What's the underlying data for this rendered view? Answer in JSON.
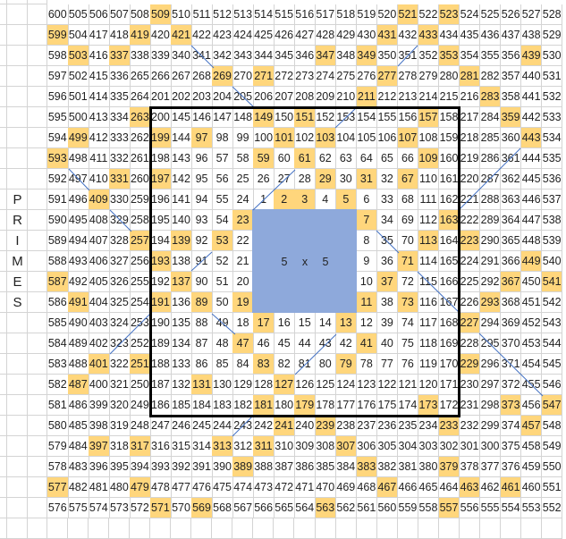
{
  "side_label": [
    "P",
    "R",
    "I",
    "M",
    "E",
    "S"
  ],
  "block_label": [
    "5",
    "x",
    "5"
  ],
  "colors": {
    "highlight": "#FFD67C",
    "block": "#8EA9DB",
    "frame": "#000000",
    "diagonal_lines": "#4472C4"
  },
  "highlighted": [
    2,
    3,
    5,
    7,
    11,
    13,
    17,
    19,
    23,
    29,
    31,
    37,
    41,
    47,
    53,
    59,
    61,
    67,
    71,
    73,
    79,
    83,
    89,
    97,
    101,
    103,
    107,
    109,
    113,
    127,
    131,
    137,
    139,
    149,
    151,
    157,
    163,
    173,
    179,
    181,
    191,
    193,
    197,
    199,
    211,
    223,
    227,
    229,
    233,
    239,
    241,
    251,
    257,
    263,
    269,
    271,
    277,
    281,
    283,
    293,
    307,
    311,
    313,
    317,
    331,
    337,
    347,
    349,
    353,
    359,
    367,
    373,
    379,
    383,
    389,
    397,
    401,
    409,
    419,
    421,
    431,
    433,
    439,
    443,
    449,
    457,
    461,
    463,
    467,
    479,
    487,
    491,
    499,
    503,
    509,
    521,
    523,
    541,
    547,
    557,
    563,
    569,
    571,
    577,
    587,
    593,
    599
  ],
  "grid": {
    "rows": [
      [
        600,
        505,
        506,
        507,
        508,
        509,
        510,
        511,
        512,
        513,
        514,
        515,
        516,
        517,
        518,
        519,
        520,
        521,
        522,
        523,
        524,
        525,
        526,
        527,
        528
      ],
      [
        599,
        504,
        417,
        418,
        419,
        420,
        421,
        422,
        423,
        424,
        425,
        426,
        427,
        428,
        429,
        430,
        431,
        432,
        433,
        434,
        435,
        436,
        437,
        438,
        529
      ],
      [
        598,
        503,
        416,
        337,
        338,
        339,
        340,
        341,
        342,
        343,
        344,
        345,
        346,
        347,
        348,
        349,
        350,
        351,
        352,
        353,
        354,
        355,
        356,
        439,
        530
      ],
      [
        597,
        502,
        415,
        336,
        265,
        266,
        267,
        268,
        269,
        270,
        271,
        272,
        273,
        274,
        275,
        276,
        277,
        278,
        279,
        280,
        281,
        282,
        357,
        440,
        531
      ],
      [
        596,
        501,
        414,
        335,
        264,
        201,
        202,
        203,
        204,
        205,
        206,
        207,
        208,
        209,
        210,
        211,
        212,
        213,
        214,
        215,
        216,
        283,
        358,
        441,
        532
      ],
      [
        595,
        500,
        413,
        334,
        263,
        200,
        145,
        146,
        147,
        148,
        149,
        150,
        151,
        152,
        153,
        154,
        155,
        156,
        157,
        158,
        217,
        284,
        359,
        442,
        533
      ],
      [
        594,
        499,
        412,
        333,
        262,
        199,
        144,
        97,
        98,
        99,
        100,
        101,
        102,
        103,
        104,
        105,
        106,
        107,
        108,
        159,
        218,
        285,
        360,
        443,
        534
      ],
      [
        593,
        498,
        411,
        332,
        261,
        198,
        143,
        96,
        57,
        58,
        59,
        60,
        61,
        62,
        63,
        64,
        65,
        66,
        109,
        160,
        219,
        286,
        361,
        444,
        535
      ],
      [
        592,
        497,
        410,
        331,
        260,
        197,
        142,
        95,
        56,
        25,
        26,
        27,
        28,
        29,
        30,
        31,
        32,
        67,
        110,
        161,
        220,
        287,
        362,
        445,
        536
      ],
      [
        591,
        496,
        409,
        330,
        259,
        196,
        141,
        94,
        55,
        24,
        1,
        2,
        3,
        4,
        5,
        6,
        33,
        68,
        111,
        162,
        221,
        288,
        363,
        446,
        537
      ],
      [
        590,
        495,
        408,
        329,
        258,
        195,
        140,
        93,
        54,
        23,
        null,
        null,
        null,
        null,
        null,
        7,
        34,
        69,
        112,
        163,
        222,
        289,
        364,
        447,
        538
      ],
      [
        589,
        494,
        407,
        328,
        257,
        194,
        139,
        92,
        53,
        22,
        null,
        null,
        null,
        null,
        null,
        8,
        35,
        70,
        113,
        164,
        223,
        290,
        365,
        448,
        539
      ],
      [
        588,
        493,
        406,
        327,
        256,
        193,
        138,
        91,
        52,
        21,
        null,
        null,
        null,
        null,
        null,
        9,
        36,
        71,
        114,
        165,
        224,
        291,
        366,
        449,
        540
      ],
      [
        587,
        492,
        405,
        326,
        255,
        192,
        137,
        90,
        51,
        20,
        null,
        null,
        null,
        null,
        null,
        10,
        37,
        72,
        115,
        166,
        225,
        292,
        367,
        450,
        541
      ],
      [
        586,
        491,
        404,
        325,
        254,
        191,
        136,
        89,
        50,
        19,
        null,
        null,
        null,
        null,
        null,
        11,
        38,
        73,
        116,
        167,
        226,
        293,
        368,
        451,
        542
      ],
      [
        585,
        490,
        403,
        324,
        253,
        190,
        135,
        88,
        49,
        18,
        17,
        16,
        15,
        14,
        13,
        12,
        39,
        74,
        117,
        168,
        227,
        294,
        369,
        452,
        543
      ],
      [
        584,
        489,
        402,
        323,
        252,
        189,
        134,
        87,
        48,
        47,
        46,
        45,
        44,
        43,
        42,
        41,
        40,
        75,
        118,
        169,
        228,
        295,
        370,
        453,
        544
      ],
      [
        583,
        488,
        401,
        322,
        251,
        188,
        133,
        86,
        85,
        84,
        83,
        82,
        81,
        80,
        79,
        78,
        77,
        76,
        119,
        170,
        229,
        296,
        371,
        454,
        545
      ],
      [
        582,
        487,
        400,
        321,
        250,
        187,
        132,
        131,
        130,
        129,
        128,
        127,
        126,
        125,
        124,
        123,
        122,
        121,
        120,
        171,
        230,
        297,
        372,
        455,
        546
      ],
      [
        581,
        486,
        399,
        320,
        249,
        186,
        185,
        184,
        183,
        182,
        181,
        180,
        179,
        178,
        177,
        176,
        175,
        174,
        173,
        172,
        231,
        298,
        373,
        456,
        547
      ],
      [
        580,
        485,
        398,
        319,
        248,
        247,
        246,
        245,
        244,
        243,
        242,
        241,
        240,
        239,
        238,
        237,
        236,
        235,
        234,
        233,
        232,
        299,
        374,
        457,
        548
      ],
      [
        579,
        484,
        397,
        318,
        317,
        316,
        315,
        314,
        313,
        312,
        311,
        310,
        309,
        308,
        307,
        306,
        305,
        304,
        303,
        302,
        301,
        300,
        375,
        458,
        549
      ],
      [
        578,
        483,
        396,
        395,
        394,
        393,
        392,
        391,
        390,
        389,
        388,
        387,
        386,
        385,
        384,
        383,
        382,
        381,
        380,
        379,
        378,
        377,
        376,
        459,
        550
      ],
      [
        577,
        482,
        481,
        480,
        479,
        478,
        477,
        476,
        475,
        474,
        473,
        472,
        471,
        470,
        469,
        468,
        467,
        466,
        465,
        464,
        463,
        462,
        461,
        460,
        551
      ],
      [
        576,
        575,
        574,
        573,
        572,
        571,
        570,
        569,
        568,
        567,
        566,
        565,
        564,
        563,
        562,
        561,
        560,
        559,
        558,
        557,
        556,
        555,
        554,
        553,
        552
      ]
    ]
  }
}
